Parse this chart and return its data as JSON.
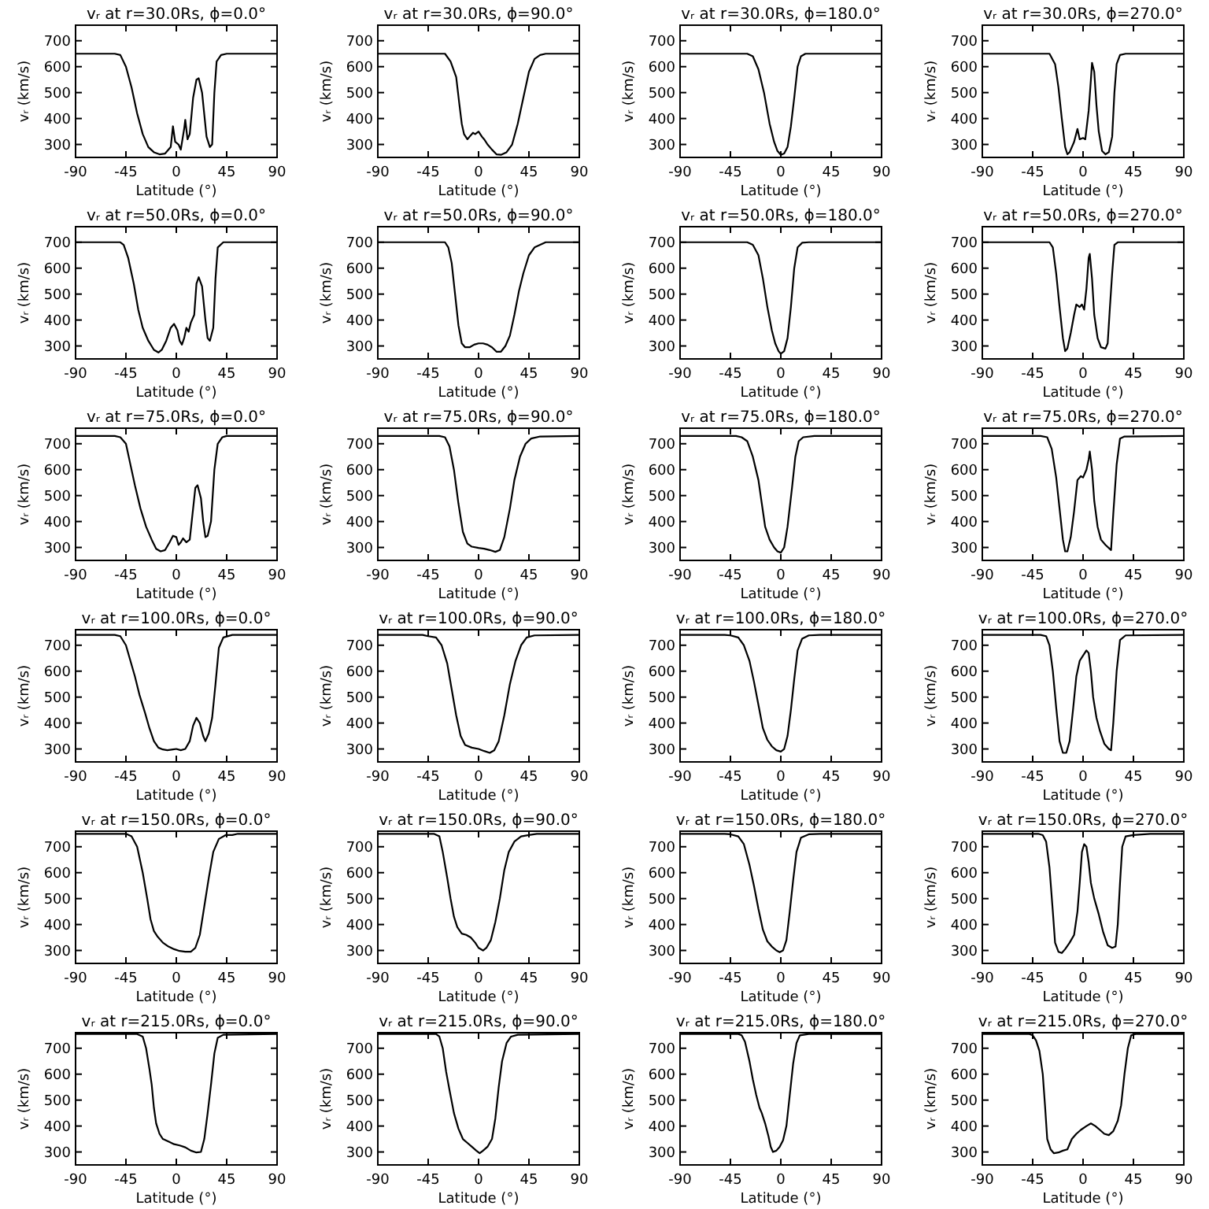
{
  "chart_data": [
    {
      "type": "line",
      "title": "vᵣ at r=30.0Rs, ϕ=0.0°",
      "xlabel": "Latitude (°)",
      "ylabel": "vᵣ (km/s)",
      "color": "#000000",
      "xlim": [
        -90,
        90
      ],
      "ylim": [
        250,
        760
      ],
      "xticks": [
        -90,
        -45,
        0,
        45,
        90
      ],
      "yticks": [
        300,
        400,
        500,
        600,
        700
      ],
      "x": [
        -90,
        -55,
        -50,
        -45,
        -40,
        -35,
        -30,
        -25,
        -20,
        -15,
        -10,
        -5,
        -3,
        -1,
        2,
        4,
        7,
        8,
        10,
        12,
        15,
        18,
        20,
        23,
        27,
        30,
        32,
        34,
        36,
        40,
        45,
        90
      ],
      "values": [
        650,
        650,
        645,
        600,
        520,
        420,
        340,
        290,
        270,
        262,
        265,
        290,
        370,
        310,
        300,
        280,
        360,
        395,
        320,
        340,
        480,
        550,
        555,
        500,
        330,
        290,
        300,
        500,
        620,
        645,
        650,
        650
      ]
    },
    {
      "type": "line",
      "title": "vᵣ at r=30.0Rs, ϕ=90.0°",
      "xlabel": "Latitude (°)",
      "ylabel": "vᵣ (km/s)",
      "color": "#000000",
      "xlim": [
        -90,
        90
      ],
      "ylim": [
        250,
        760
      ],
      "xticks": [
        -90,
        -45,
        0,
        45,
        90
      ],
      "yticks": [
        300,
        400,
        500,
        600,
        700
      ],
      "x": [
        -90,
        -30,
        -25,
        -20,
        -17,
        -15,
        -13,
        -10,
        -8,
        -5,
        -3,
        0,
        3,
        5,
        8,
        12,
        16,
        20,
        25,
        30,
        35,
        40,
        45,
        50,
        55,
        60,
        90
      ],
      "values": [
        650,
        650,
        620,
        560,
        450,
        380,
        340,
        320,
        330,
        345,
        340,
        350,
        330,
        320,
        300,
        280,
        262,
        260,
        270,
        300,
        380,
        480,
        580,
        630,
        645,
        650,
        650
      ]
    },
    {
      "type": "line",
      "title": "vᵣ at r=30.0Rs, ϕ=180.0°",
      "xlabel": "Latitude (°)",
      "ylabel": "vᵣ (km/s)",
      "color": "#000000",
      "xlim": [
        -90,
        90
      ],
      "ylim": [
        250,
        760
      ],
      "xticks": [
        -90,
        -45,
        0,
        45,
        90
      ],
      "yticks": [
        300,
        400,
        500,
        600,
        700
      ],
      "x": [
        -90,
        -30,
        -25,
        -20,
        -15,
        -10,
        -6,
        -3,
        0,
        3,
        6,
        9,
        12,
        15,
        18,
        22,
        90
      ],
      "values": [
        650,
        650,
        640,
        590,
        500,
        380,
        310,
        275,
        260,
        265,
        290,
        370,
        480,
        600,
        640,
        650,
        650
      ]
    },
    {
      "type": "line",
      "title": "vᵣ at r=30.0Rs, ϕ=270.0°",
      "xlabel": "Latitude (°)",
      "ylabel": "vᵣ (km/s)",
      "color": "#000000",
      "xlim": [
        -90,
        90
      ],
      "ylim": [
        250,
        760
      ],
      "xticks": [
        -90,
        -45,
        0,
        45,
        90
      ],
      "yticks": [
        300,
        400,
        500,
        600,
        700
      ],
      "x": [
        -90,
        -30,
        -25,
        -22,
        -19,
        -16,
        -14,
        -12,
        -8,
        -5,
        -3,
        0,
        2,
        5,
        7,
        8,
        10,
        12,
        14,
        17,
        20,
        23,
        26,
        28,
        30,
        33,
        38,
        90
      ],
      "values": [
        650,
        650,
        610,
        520,
        400,
        290,
        262,
        270,
        310,
        360,
        320,
        325,
        320,
        430,
        550,
        615,
        580,
        450,
        350,
        275,
        262,
        270,
        330,
        500,
        610,
        645,
        650,
        650
      ]
    },
    {
      "type": "line",
      "title": "vᵣ at r=50.0Rs, ϕ=0.0°",
      "xlabel": "Latitude (°)",
      "ylabel": "vᵣ (km/s)",
      "color": "#000000",
      "xlim": [
        -90,
        90
      ],
      "ylim": [
        250,
        760
      ],
      "xticks": [
        -90,
        -45,
        0,
        45,
        90
      ],
      "yticks": [
        300,
        400,
        500,
        600,
        700
      ],
      "x": [
        -90,
        -50,
        -47,
        -43,
        -38,
        -34,
        -30,
        -25,
        -20,
        -16,
        -13,
        -9,
        -5,
        -2,
        1,
        3,
        5,
        7,
        9,
        11,
        13,
        16,
        18,
        20,
        23,
        26,
        28,
        30,
        33,
        35,
        37,
        42,
        90
      ],
      "values": [
        700,
        700,
        690,
        640,
        540,
        440,
        370,
        320,
        285,
        275,
        285,
        320,
        370,
        385,
        360,
        320,
        305,
        330,
        370,
        355,
        390,
        420,
        540,
        565,
        530,
        400,
        330,
        320,
        370,
        560,
        680,
        700,
        700
      ]
    },
    {
      "type": "line",
      "title": "vᵣ at r=50.0Rs, ϕ=90.0°",
      "xlabel": "Latitude (°)",
      "ylabel": "vᵣ (km/s)",
      "color": "#000000",
      "xlim": [
        -90,
        90
      ],
      "ylim": [
        250,
        760
      ],
      "xticks": [
        -90,
        -45,
        0,
        45,
        90
      ],
      "yticks": [
        300,
        400,
        500,
        600,
        700
      ],
      "x": [
        -90,
        -30,
        -27,
        -24,
        -21,
        -18,
        -15,
        -12,
        -8,
        -4,
        0,
        4,
        8,
        12,
        16,
        20,
        24,
        28,
        32,
        36,
        40,
        45,
        50,
        55,
        60,
        90
      ],
      "values": [
        700,
        700,
        680,
        620,
        500,
        380,
        310,
        295,
        295,
        305,
        310,
        310,
        305,
        295,
        278,
        278,
        300,
        340,
        420,
        510,
        580,
        650,
        680,
        690,
        700,
        700
      ]
    },
    {
      "type": "line",
      "title": "vᵣ at r=50.0Rs, ϕ=180.0°",
      "xlabel": "Latitude (°)",
      "ylabel": "vᵣ (km/s)",
      "color": "#000000",
      "xlim": [
        -90,
        90
      ],
      "ylim": [
        250,
        760
      ],
      "xticks": [
        -90,
        -45,
        0,
        45,
        90
      ],
      "yticks": [
        300,
        400,
        500,
        600,
        700
      ],
      "x": [
        -90,
        -30,
        -25,
        -20,
        -16,
        -12,
        -8,
        -5,
        -2,
        0,
        3,
        6,
        9,
        12,
        15,
        19,
        25,
        90
      ],
      "values": [
        700,
        700,
        690,
        650,
        560,
        450,
        360,
        310,
        280,
        270,
        280,
        330,
        450,
        600,
        680,
        698,
        700,
        700
      ]
    },
    {
      "type": "line",
      "title": "vᵣ at r=50.0Rs, ϕ=270.0°",
      "xlabel": "Latitude (°)",
      "ylabel": "vᵣ (km/s)",
      "color": "#000000",
      "xlim": [
        -90,
        90
      ],
      "ylim": [
        250,
        760
      ],
      "xticks": [
        -90,
        -45,
        0,
        45,
        90
      ],
      "yticks": [
        300,
        400,
        500,
        600,
        700
      ],
      "x": [
        -90,
        -30,
        -27,
        -24,
        -21,
        -18,
        -16,
        -14,
        -11,
        -8,
        -6,
        -3,
        -1,
        1,
        3,
        5,
        6,
        8,
        10,
        13,
        16,
        20,
        22,
        24,
        26,
        28,
        31,
        90
      ],
      "values": [
        700,
        700,
        680,
        580,
        450,
        330,
        280,
        290,
        350,
        420,
        460,
        450,
        460,
        440,
        520,
        640,
        655,
        560,
        420,
        330,
        295,
        290,
        310,
        450,
        580,
        690,
        700,
        700
      ]
    },
    {
      "type": "line",
      "title": "vᵣ at r=75.0Rs, ϕ=0.0°",
      "xlabel": "Latitude (°)",
      "ylabel": "vᵣ (km/s)",
      "color": "#000000",
      "xlim": [
        -90,
        90
      ],
      "ylim": [
        250,
        760
      ],
      "xticks": [
        -90,
        -45,
        0,
        45,
        90
      ],
      "yticks": [
        300,
        400,
        500,
        600,
        700
      ],
      "x": [
        -90,
        -55,
        -50,
        -45,
        -41,
        -37,
        -32,
        -27,
        -22,
        -18,
        -14,
        -10,
        -6,
        -3,
        0,
        2,
        4,
        6,
        9,
        12,
        15,
        17,
        19,
        22,
        24,
        26,
        28,
        31,
        34,
        37,
        41,
        45,
        90
      ],
      "values": [
        730,
        730,
        725,
        700,
        620,
        540,
        450,
        380,
        330,
        295,
        285,
        290,
        320,
        345,
        340,
        310,
        320,
        335,
        320,
        330,
        450,
        530,
        540,
        490,
        400,
        340,
        345,
        400,
        600,
        700,
        725,
        730,
        730
      ]
    },
    {
      "type": "line",
      "title": "vᵣ at r=75.0Rs, ϕ=90.0°",
      "xlabel": "Latitude (°)",
      "ylabel": "vᵣ (km/s)",
      "color": "#000000",
      "xlim": [
        -90,
        90
      ],
      "ylim": [
        250,
        760
      ],
      "xticks": [
        -90,
        -45,
        0,
        45,
        90
      ],
      "yticks": [
        300,
        400,
        500,
        600,
        700
      ],
      "x": [
        -90,
        -35,
        -30,
        -26,
        -22,
        -18,
        -14,
        -10,
        -6,
        0,
        5,
        10,
        15,
        19,
        23,
        28,
        32,
        37,
        42,
        47,
        55,
        90
      ],
      "values": [
        730,
        730,
        725,
        690,
        600,
        470,
        360,
        315,
        303,
        298,
        295,
        290,
        283,
        290,
        340,
        450,
        560,
        650,
        700,
        720,
        728,
        730
      ]
    },
    {
      "type": "line",
      "title": "vᵣ at r=75.0Rs, ϕ=180.0°",
      "xlabel": "Latitude (°)",
      "ylabel": "vᵣ (km/s)",
      "color": "#000000",
      "xlim": [
        -90,
        90
      ],
      "ylim": [
        250,
        760
      ],
      "xticks": [
        -90,
        -45,
        0,
        45,
        90
      ],
      "yticks": [
        300,
        400,
        500,
        600,
        700
      ],
      "x": [
        -90,
        -40,
        -35,
        -30,
        -25,
        -20,
        -17,
        -14,
        -10,
        -6,
        -3,
        0,
        3,
        6,
        10,
        13,
        16,
        20,
        30,
        90
      ],
      "values": [
        730,
        730,
        725,
        710,
        650,
        560,
        470,
        380,
        330,
        300,
        285,
        280,
        300,
        380,
        530,
        650,
        710,
        725,
        730,
        730
      ]
    },
    {
      "type": "line",
      "title": "vᵣ at r=75.0Rs, ϕ=270.0°",
      "xlabel": "Latitude (°)",
      "ylabel": "vᵣ (km/s)",
      "color": "#000000",
      "xlim": [
        -90,
        90
      ],
      "ylim": [
        250,
        760
      ],
      "xticks": [
        -90,
        -45,
        0,
        45,
        90
      ],
      "yticks": [
        300,
        400,
        500,
        600,
        700
      ],
      "x": [
        -90,
        -38,
        -32,
        -28,
        -24,
        -21,
        -18,
        -16,
        -14,
        -11,
        -8,
        -5,
        -2,
        0,
        3,
        5,
        6,
        8,
        10,
        13,
        16,
        20,
        25,
        27,
        30,
        33,
        37,
        90
      ],
      "values": [
        730,
        730,
        725,
        680,
        570,
        450,
        330,
        285,
        285,
        340,
        440,
        560,
        575,
        570,
        600,
        640,
        670,
        600,
        480,
        380,
        330,
        310,
        290,
        430,
        620,
        720,
        728,
        730
      ]
    },
    {
      "type": "line",
      "title": "vᵣ at r=100.0Rs, ϕ=0.0°",
      "xlabel": "Latitude (°)",
      "ylabel": "vᵣ (km/s)",
      "color": "#000000",
      "xlim": [
        -90,
        90
      ],
      "ylim": [
        250,
        760
      ],
      "xticks": [
        -90,
        -45,
        0,
        45,
        90
      ],
      "yticks": [
        300,
        400,
        500,
        600,
        700
      ],
      "x": [
        -90,
        -55,
        -50,
        -45,
        -41,
        -37,
        -33,
        -28,
        -24,
        -20,
        -16,
        -12,
        -8,
        -3,
        0,
        4,
        8,
        12,
        15,
        18,
        21,
        24,
        26,
        29,
        32,
        35,
        38,
        42,
        50,
        90
      ],
      "values": [
        740,
        740,
        735,
        700,
        640,
        580,
        510,
        440,
        380,
        330,
        305,
        298,
        295,
        298,
        300,
        295,
        300,
        330,
        390,
        420,
        400,
        350,
        330,
        360,
        420,
        550,
        690,
        730,
        740,
        740
      ]
    },
    {
      "type": "line",
      "title": "vᵣ at r=100.0Rs, ϕ=90.0°",
      "xlabel": "Latitude (°)",
      "ylabel": "vᵣ (km/s)",
      "color": "#000000",
      "xlim": [
        -90,
        90
      ],
      "ylim": [
        250,
        760
      ],
      "xticks": [
        -90,
        -45,
        0,
        45,
        90
      ],
      "yticks": [
        300,
        400,
        500,
        600,
        700
      ],
      "x": [
        -90,
        -50,
        -45,
        -38,
        -33,
        -28,
        -24,
        -20,
        -16,
        -12,
        -6,
        0,
        5,
        10,
        14,
        18,
        23,
        28,
        33,
        38,
        43,
        50,
        90
      ],
      "values": [
        740,
        740,
        735,
        730,
        700,
        630,
        530,
        430,
        350,
        315,
        305,
        300,
        292,
        285,
        295,
        330,
        430,
        550,
        640,
        700,
        730,
        738,
        740
      ]
    },
    {
      "type": "line",
      "title": "vᵣ at r=100.0Rs, ϕ=180.0°",
      "xlabel": "Latitude (°)",
      "ylabel": "vᵣ (km/s)",
      "color": "#000000",
      "xlim": [
        -90,
        90
      ],
      "ylim": [
        250,
        760
      ],
      "xticks": [
        -90,
        -45,
        0,
        45,
        90
      ],
      "yticks": [
        300,
        400,
        500,
        600,
        700
      ],
      "x": [
        -90,
        -50,
        -45,
        -38,
        -33,
        -28,
        -24,
        -20,
        -16,
        -12,
        -8,
        -4,
        0,
        3,
        6,
        9,
        12,
        15,
        19,
        25,
        35,
        90
      ],
      "values": [
        740,
        740,
        738,
        730,
        700,
        640,
        560,
        470,
        380,
        335,
        310,
        295,
        290,
        300,
        350,
        450,
        570,
        680,
        725,
        738,
        740,
        740
      ]
    },
    {
      "type": "line",
      "title": "vᵣ at r=100.0Rs, ϕ=270.0°",
      "xlabel": "Latitude (°)",
      "ylabel": "vᵣ (km/s)",
      "color": "#000000",
      "xlim": [
        -90,
        90
      ],
      "ylim": [
        250,
        760
      ],
      "xticks": [
        -90,
        -45,
        0,
        45,
        90
      ],
      "yticks": [
        300,
        400,
        500,
        600,
        700
      ],
      "x": [
        -90,
        -38,
        -33,
        -30,
        -27,
        -24,
        -21,
        -18,
        -15,
        -12,
        -9,
        -6,
        -3,
        0,
        3,
        5,
        7,
        9,
        12,
        15,
        19,
        23,
        25,
        27,
        30,
        33,
        38,
        90
      ],
      "values": [
        740,
        740,
        735,
        700,
        600,
        460,
        330,
        285,
        285,
        330,
        450,
        580,
        640,
        660,
        680,
        670,
        600,
        500,
        420,
        370,
        320,
        300,
        295,
        400,
        600,
        720,
        738,
        740
      ]
    },
    {
      "type": "line",
      "title": "vᵣ at r=150.0Rs, ϕ=0.0°",
      "xlabel": "Latitude (°)",
      "ylabel": "vᵣ (km/s)",
      "color": "#000000",
      "xlim": [
        -90,
        90
      ],
      "ylim": [
        250,
        760
      ],
      "xticks": [
        -90,
        -45,
        0,
        45,
        90
      ],
      "yticks": [
        300,
        400,
        500,
        600,
        700
      ],
      "x": [
        -90,
        -45,
        -40,
        -35,
        -30,
        -26,
        -23,
        -20,
        -17,
        -12,
        -7,
        -2,
        3,
        8,
        13,
        17,
        21,
        25,
        29,
        33,
        38,
        44,
        50,
        55,
        90
      ],
      "values": [
        750,
        750,
        740,
        700,
        600,
        500,
        420,
        375,
        355,
        330,
        315,
        305,
        298,
        295,
        295,
        310,
        360,
        470,
        580,
        680,
        730,
        745,
        745,
        750,
        750
      ]
    },
    {
      "type": "line",
      "title": "vᵣ at r=150.0Rs, ϕ=90.0°",
      "xlabel": "Latitude (°)",
      "ylabel": "vᵣ (km/s)",
      "color": "#000000",
      "xlim": [
        -90,
        90
      ],
      "ylim": [
        250,
        760
      ],
      "xticks": [
        -90,
        -45,
        0,
        45,
        90
      ],
      "yticks": [
        300,
        400,
        500,
        600,
        700
      ],
      "x": [
        -90,
        -40,
        -35,
        -32,
        -28,
        -25,
        -22,
        -19,
        -15,
        -11,
        -7,
        -3,
        0,
        4,
        7,
        11,
        15,
        19,
        23,
        27,
        32,
        38,
        45,
        52,
        90
      ],
      "values": [
        750,
        750,
        740,
        680,
        580,
        500,
        430,
        390,
        365,
        360,
        350,
        330,
        310,
        300,
        310,
        340,
        410,
        500,
        610,
        680,
        720,
        740,
        745,
        750,
        750
      ]
    },
    {
      "type": "line",
      "title": "vᵣ at r=150.0Rs, ϕ=180.0°",
      "xlabel": "Latitude (°)",
      "ylabel": "vᵣ (km/s)",
      "color": "#000000",
      "xlim": [
        -90,
        90
      ],
      "ylim": [
        250,
        760
      ],
      "xticks": [
        -90,
        -45,
        0,
        45,
        90
      ],
      "yticks": [
        300,
        400,
        500,
        600,
        700
      ],
      "x": [
        -90,
        -50,
        -45,
        -38,
        -33,
        -28,
        -24,
        -20,
        -16,
        -12,
        -8,
        -4,
        -1,
        2,
        5,
        8,
        11,
        14,
        18,
        25,
        35,
        90
      ],
      "values": [
        750,
        750,
        748,
        740,
        710,
        630,
        550,
        460,
        380,
        335,
        315,
        300,
        293,
        300,
        340,
        450,
        570,
        680,
        735,
        748,
        750,
        750
      ]
    },
    {
      "type": "line",
      "title": "vᵣ at r=150.0Rs, ϕ=270.0°",
      "xlabel": "Latitude (°)",
      "ylabel": "vᵣ (km/s)",
      "color": "#000000",
      "xlim": [
        -90,
        90
      ],
      "ylim": [
        250,
        760
      ],
      "xticks": [
        -90,
        -45,
        0,
        45,
        90
      ],
      "yticks": [
        300,
        400,
        500,
        600,
        700
      ],
      "x": [
        -90,
        -40,
        -36,
        -33,
        -30,
        -27,
        -25,
        -22,
        -19,
        -16,
        -12,
        -8,
        -5,
        -3,
        -1,
        1,
        3,
        5,
        7,
        10,
        14,
        18,
        22,
        26,
        29,
        31,
        33,
        35,
        38,
        45,
        60,
        90
      ],
      "values": [
        750,
        750,
        745,
        720,
        620,
        450,
        330,
        295,
        290,
        305,
        330,
        360,
        450,
        560,
        680,
        710,
        700,
        640,
        560,
        500,
        440,
        370,
        320,
        310,
        315,
        400,
        560,
        700,
        740,
        745,
        750,
        750
      ]
    },
    {
      "type": "line",
      "title": "vᵣ at r=215.0Rs, ϕ=0.0°",
      "xlabel": "Latitude (°)",
      "ylabel": "vᵣ (km/s)",
      "color": "#000000",
      "xlim": [
        -90,
        90
      ],
      "ylim": [
        250,
        760
      ],
      "xticks": [
        -90,
        -45,
        0,
        45,
        90
      ],
      "yticks": [
        300,
        400,
        500,
        600,
        700
      ],
      "x": [
        -90,
        -35,
        -30,
        -27,
        -24,
        -22,
        -20,
        -18,
        -15,
        -12,
        -7,
        -2,
        3,
        8,
        13,
        18,
        22,
        25,
        28,
        31,
        34,
        37,
        42,
        90
      ],
      "values": [
        755,
        755,
        745,
        700,
        620,
        560,
        470,
        410,
        370,
        350,
        340,
        330,
        325,
        318,
        305,
        298,
        300,
        350,
        450,
        560,
        680,
        740,
        752,
        755
      ]
    },
    {
      "type": "line",
      "title": "vᵣ at r=215.0Rs, ϕ=90.0°",
      "xlabel": "Latitude (°)",
      "ylabel": "vᵣ (km/s)",
      "color": "#000000",
      "xlim": [
        -90,
        90
      ],
      "ylim": [
        250,
        760
      ],
      "xticks": [
        -90,
        -45,
        0,
        45,
        90
      ],
      "yticks": [
        300,
        400,
        500,
        600,
        700
      ],
      "x": [
        -90,
        -38,
        -35,
        -32,
        -29,
        -26,
        -22,
        -18,
        -14,
        -10,
        -6,
        -2,
        1,
        4,
        8,
        12,
        15,
        18,
        21,
        25,
        29,
        35,
        90
      ],
      "values": [
        755,
        755,
        745,
        700,
        610,
        540,
        450,
        390,
        350,
        335,
        320,
        305,
        295,
        305,
        320,
        350,
        430,
        550,
        650,
        720,
        745,
        752,
        755
      ]
    },
    {
      "type": "line",
      "title": "vᵣ at r=215.0Rs, ϕ=180.0°",
      "xlabel": "Latitude (°)",
      "ylabel": "vᵣ (km/s)",
      "color": "#000000",
      "xlim": [
        -90,
        90
      ],
      "ylim": [
        250,
        760
      ],
      "xticks": [
        -90,
        -45,
        0,
        45,
        90
      ],
      "yticks": [
        300,
        400,
        500,
        600,
        700
      ],
      "x": [
        -90,
        -38,
        -35,
        -32,
        -28,
        -25,
        -22,
        -19,
        -17,
        -14,
        -11,
        -9,
        -7,
        -4,
        -1,
        2,
        5,
        8,
        11,
        14,
        17,
        25,
        90
      ],
      "values": [
        755,
        755,
        750,
        725,
        650,
        580,
        520,
        470,
        450,
        410,
        360,
        320,
        300,
        305,
        320,
        345,
        400,
        520,
        640,
        720,
        750,
        755,
        755
      ]
    },
    {
      "type": "line",
      "title": "vᵣ at r=215.0Rs, ϕ=270.0°",
      "xlabel": "Latitude (°)",
      "ylabel": "vᵣ (km/s)",
      "color": "#000000",
      "xlim": [
        -90,
        90
      ],
      "ylim": [
        250,
        760
      ],
      "xticks": [
        -90,
        -45,
        0,
        45,
        90
      ],
      "yticks": [
        300,
        400,
        500,
        600,
        700
      ],
      "x": [
        -90,
        -48,
        -45,
        -42,
        -39,
        -36,
        -34,
        -32,
        -29,
        -26,
        -22,
        -18,
        -14,
        -10,
        -6,
        -2,
        3,
        7,
        11,
        15,
        19,
        23,
        27,
        31,
        34,
        37,
        40,
        43,
        47,
        90
      ],
      "values": [
        755,
        755,
        750,
        730,
        690,
        600,
        480,
        350,
        310,
        295,
        298,
        305,
        310,
        350,
        370,
        385,
        400,
        410,
        400,
        385,
        370,
        365,
        380,
        420,
        480,
        600,
        700,
        750,
        755,
        755
      ]
    }
  ]
}
